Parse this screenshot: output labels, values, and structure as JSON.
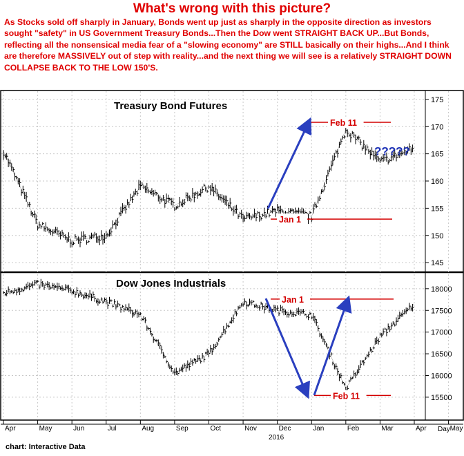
{
  "headline": "What's wrong with this picture?",
  "commentary": "As Stocks sold off sharply in January, Bonds went up just as sharply in the opposite direction as investors sought \"safety\" in US Government Treasury Bonds...Then the Dow went STRAIGHT BACK UP...But Bonds, reflecting all the nonsensical media fear of a \"slowing economy\" are STILL basically on their highs...And I think are therefore MASSIVELY out of step with reality...and the next thing we will see is a relatively STRAIGHT DOWN COLLAPSE BACK TO THE LOW 150'S.",
  "source": "chart: Interactive Data",
  "colors": {
    "annotation": "#d40000",
    "arrow": "#2a3fbf",
    "bars": "#000000",
    "grid": "#c8c8c8"
  },
  "chart_data": [
    {
      "type": "line",
      "title": "Treasury Bond Futures",
      "ylim": [
        144,
        176
      ],
      "yticks": [
        145,
        150,
        155,
        160,
        165,
        170,
        175
      ],
      "x": [
        "Apr",
        "May",
        "Jun",
        "Jul",
        "Aug",
        "Sep",
        "Oct",
        "Nov",
        "Dec",
        "Jan",
        "Feb",
        "Mar",
        "Apr"
      ],
      "values": [
        165.5,
        152,
        149,
        150,
        159,
        155.5,
        159,
        153,
        154.5,
        153.5,
        169.5,
        163.5,
        166
      ],
      "annotations": [
        {
          "label": "Feb 11",
          "value": 170.8
        },
        {
          "label": "Jan 1",
          "value": 153
        },
        {
          "label": "?????",
          "value": 165.5
        }
      ],
      "grid": true
    },
    {
      "type": "line",
      "title": "Dow Jones Industrials",
      "ylim": [
        15100,
        18300
      ],
      "yticks": [
        15500,
        16000,
        16500,
        17000,
        17500,
        18000
      ],
      "x": [
        "Apr",
        "May",
        "Jun",
        "Jul",
        "Aug",
        "Sep",
        "Oct",
        "Nov",
        "Dec",
        "Jan",
        "Feb",
        "Mar",
        "Apr"
      ],
      "values": [
        17900,
        18100,
        17950,
        17700,
        17400,
        16050,
        16500,
        17700,
        17500,
        17400,
        15700,
        16900,
        17650
      ],
      "annotations": [
        {
          "label": "Jan 1",
          "value": 17760
        },
        {
          "label": "Feb 11",
          "value": 15540
        }
      ],
      "grid": true
    }
  ],
  "x_axis": {
    "months": [
      "Apr",
      "May",
      "Jun",
      "Jul",
      "Aug",
      "Sep",
      "Oct",
      "Nov",
      "Dec",
      "Jan",
      "Feb",
      "Mar",
      "Apr",
      "May"
    ],
    "year_label": "2016",
    "unit_label": "Day"
  }
}
